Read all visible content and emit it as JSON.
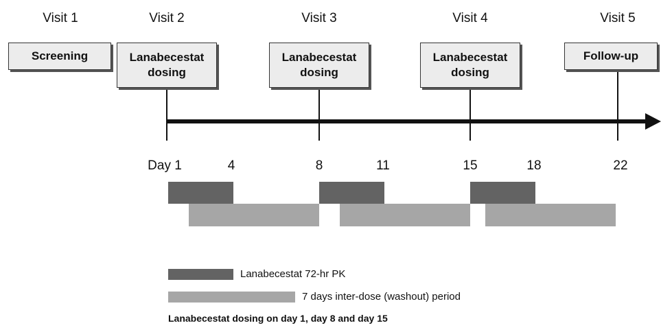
{
  "visits": [
    {
      "label": "Visit 1",
      "box": "Screening"
    },
    {
      "label": "Visit 2",
      "box": "Lanabecestat dosing"
    },
    {
      "label": "Visit 3",
      "box": "Lanabecestat dosing"
    },
    {
      "label": "Visit 4",
      "box": "Lanabecestat dosing"
    },
    {
      "label": "Visit 5",
      "box": "Follow-up"
    }
  ],
  "days": [
    "Day 1",
    "4",
    "8",
    "11",
    "15",
    "18",
    "22"
  ],
  "legend": [
    "Lanabecestat 72-hr PK",
    "7 days inter-dose (washout) period"
  ],
  "caption": "Lanabecestat dosing on day 1, day 8 and day 15"
}
